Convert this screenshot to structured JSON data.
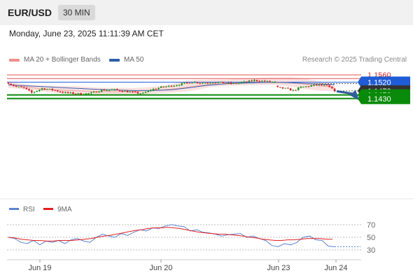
{
  "header": {
    "symbol": "EUR/USD",
    "timeframe": "30 MIN",
    "datetime": "Monday, June 23, 2025 11:11:39 AM CET"
  },
  "legend": {
    "main": [
      {
        "label": "MA 20 + Bollinger Bands",
        "color": "#f08f8f"
      },
      {
        "label": "MA 50",
        "color": "#2e5ea8"
      }
    ],
    "rsi": [
      {
        "label": "RSI",
        "color": "#5b83d4"
      },
      {
        "label": "9MA",
        "color": "#e02020"
      }
    ],
    "credit": "Research © 2025 Trading Central"
  },
  "colors": {
    "up": "#1a9a1a",
    "down": "#d42424",
    "support": "#0a8a0a",
    "resistance": "#e85050",
    "pivot": "#1f5cd6",
    "bands": "#fbdcdc",
    "ma20": "#f2a0a0",
    "ma50": "#3a64b0",
    "arrow": "#2f5d9e",
    "current": "#333333"
  },
  "chart_data": [
    {
      "type": "candlestick",
      "title": "EUR/USD 30 MIN",
      "x_ticks": [
        "Jun 19",
        "Jun 20",
        "Jun 23",
        "Jun 24"
      ],
      "ylim": [
        1.1425,
        1.1575
      ],
      "levels": [
        {
          "value": 1.156,
          "label": "1.1560",
          "kind": "resistance"
        },
        {
          "value": 1.154,
          "label": "1.1540",
          "kind": "resistance"
        },
        {
          "value": 1.152,
          "label": "1.1520",
          "kind": "pivot"
        },
        {
          "value": 1.1472,
          "label": "1.1472",
          "kind": "current"
        },
        {
          "value": 1.145,
          "label": "1.1450",
          "kind": "support"
        },
        {
          "value": 1.143,
          "label": "1.1430",
          "kind": "support"
        }
      ],
      "ohlc_anchor": [
        [
          0,
          1.1515
        ],
        [
          3,
          1.1495
        ],
        [
          6,
          1.1488
        ],
        [
          9,
          1.1462
        ],
        [
          13,
          1.1485
        ],
        [
          17,
          1.1478
        ],
        [
          21,
          1.1464
        ],
        [
          24,
          1.146
        ],
        [
          28,
          1.1455
        ],
        [
          32,
          1.146
        ],
        [
          36,
          1.1476
        ],
        [
          41,
          1.1478
        ],
        [
          45,
          1.147
        ],
        [
          49,
          1.1462
        ],
        [
          52,
          1.1458
        ],
        [
          55,
          1.1478
        ],
        [
          59,
          1.1492
        ],
        [
          63,
          1.15
        ],
        [
          67,
          1.151
        ],
        [
          71,
          1.152
        ],
        [
          75,
          1.1516
        ],
        [
          79,
          1.152
        ],
        [
          83,
          1.1517
        ],
        [
          87,
          1.1512
        ],
        [
          91,
          1.152
        ],
        [
          95,
          1.153
        ],
        [
          99,
          1.1525
        ],
        [
          103,
          1.152
        ],
        [
          104,
          1.149
        ],
        [
          107,
          1.1485
        ],
        [
          110,
          1.1474
        ],
        [
          113,
          1.1492
        ],
        [
          116,
          1.1498
        ],
        [
          119,
          1.1506
        ],
        [
          123,
          1.15
        ],
        [
          126,
          1.1472
        ]
      ],
      "ma20": [
        1.1507,
        1.1497,
        1.1484,
        1.1478,
        1.1474,
        1.147,
        1.1468,
        1.1467,
        1.1469,
        1.1474,
        1.1478,
        1.1486,
        1.1498,
        1.1508,
        1.1513,
        1.1515,
        1.1518,
        1.152,
        1.1519,
        1.151,
        1.15,
        1.1493
      ],
      "ma50": [
        1.1505,
        1.15,
        1.1495,
        1.149,
        1.1485,
        1.148,
        1.1476,
        1.1474,
        1.1474,
        1.1478,
        1.149,
        1.1503,
        1.1511,
        1.1515,
        1.1518,
        1.1518,
        1.1515,
        1.151,
        1.1507
      ],
      "band_upper": [
        1.1525,
        1.151,
        1.1503,
        1.15,
        1.1498,
        1.1495,
        1.149,
        1.149,
        1.1488,
        1.1493,
        1.1502,
        1.152,
        1.1532,
        1.1534,
        1.1535,
        1.154,
        1.1543,
        1.1546,
        1.1547,
        1.1542,
        1.1525,
        1.151
      ],
      "band_lower": [
        1.1488,
        1.1481,
        1.147,
        1.1462,
        1.1455,
        1.1452,
        1.1452,
        1.1452,
        1.1453,
        1.1455,
        1.146,
        1.1465,
        1.1475,
        1.1493,
        1.15,
        1.1502,
        1.1504,
        1.1506,
        1.1498,
        1.1483,
        1.1473,
        1.147
      ]
    },
    {
      "type": "line",
      "title": "RSI",
      "ylim": [
        20,
        80
      ],
      "y_ticks": [
        70,
        50,
        30
      ],
      "series": [
        {
          "name": "RSI",
          "values": [
            50,
            48,
            42,
            40,
            45,
            38,
            44,
            42,
            45,
            40,
            46,
            48,
            44,
            42,
            50,
            55,
            52,
            50,
            56,
            53,
            58,
            62,
            60,
            65,
            64,
            68,
            70,
            68,
            67,
            60,
            62,
            58,
            57,
            55,
            52,
            54,
            55,
            56,
            50,
            52,
            48,
            45,
            37,
            35,
            40,
            38,
            42,
            50,
            52,
            46,
            45,
            36,
            35
          ]
        },
        {
          "name": "9MA",
          "values": [
            50,
            49,
            47,
            46,
            45,
            45,
            44,
            44,
            45,
            45,
            45,
            46,
            47,
            48,
            50,
            52,
            53,
            55,
            57,
            59,
            61,
            62,
            64,
            65,
            65,
            66,
            65,
            64,
            62,
            60,
            58,
            57,
            56,
            55,
            55,
            54,
            53,
            52,
            50,
            49,
            47,
            46,
            45,
            45,
            46,
            46,
            47,
            48,
            48,
            48,
            47,
            47
          ]
        }
      ]
    }
  ]
}
